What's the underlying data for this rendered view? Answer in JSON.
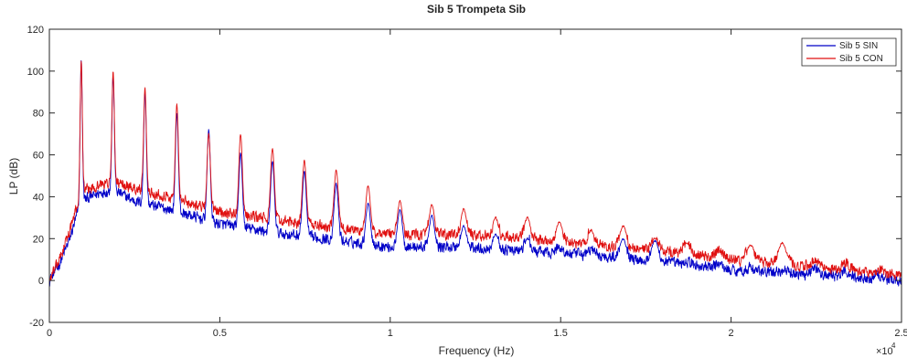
{
  "chart_data": {
    "type": "line",
    "title": "Sib 5 Trompeta Sib",
    "xlabel": "Frequency (Hz)",
    "ylabel": "LP (dB)",
    "x_multiplier_label": "×10",
    "x_multiplier_exponent": "4",
    "xlim": [
      0,
      25000
    ],
    "ylim": [
      -20,
      120
    ],
    "x_ticks": [
      {
        "value": 0,
        "label": "0"
      },
      {
        "value": 5000,
        "label": "0.5"
      },
      {
        "value": 10000,
        "label": "1"
      },
      {
        "value": 15000,
        "label": "1.5"
      },
      {
        "value": 20000,
        "label": "2"
      },
      {
        "value": 25000,
        "label": "2.5"
      }
    ],
    "y_ticks": [
      {
        "value": -20,
        "label": "-20"
      },
      {
        "value": 0,
        "label": "0"
      },
      {
        "value": 20,
        "label": "20"
      },
      {
        "value": 40,
        "label": "40"
      },
      {
        "value": 60,
        "label": "60"
      },
      {
        "value": 80,
        "label": "80"
      },
      {
        "value": 100,
        "label": "100"
      },
      {
        "value": 120,
        "label": "120"
      }
    ],
    "grid": false,
    "legend_position": "top-right",
    "fundamental_hz": 935,
    "series": [
      {
        "name": "Sib 5 SIN",
        "color": "#0000c8",
        "baseline": [
          [
            0,
            0
          ],
          [
            300,
            8
          ],
          [
            600,
            20
          ],
          [
            935,
            38
          ],
          [
            1500,
            42
          ],
          [
            1900,
            43
          ],
          [
            2500,
            38
          ],
          [
            3500,
            34
          ],
          [
            5000,
            27
          ],
          [
            7000,
            22
          ],
          [
            9000,
            18
          ],
          [
            10000,
            16
          ],
          [
            12000,
            16
          ],
          [
            14000,
            14
          ],
          [
            16000,
            12
          ],
          [
            18000,
            9
          ],
          [
            20000,
            5
          ],
          [
            22000,
            3
          ],
          [
            25000,
            0
          ]
        ],
        "peaks": [
          [
            935,
            105
          ],
          [
            1870,
            98
          ],
          [
            2805,
            90
          ],
          [
            3740,
            80
          ],
          [
            4675,
            72
          ],
          [
            5610,
            61
          ],
          [
            6545,
            57
          ],
          [
            7480,
            52
          ],
          [
            8415,
            46
          ],
          [
            9350,
            37
          ],
          [
            10285,
            34
          ],
          [
            11220,
            31
          ],
          [
            12155,
            26
          ],
          [
            13090,
            22
          ],
          [
            14025,
            20
          ],
          [
            14960,
            16
          ],
          [
            15895,
            15
          ],
          [
            16830,
            20
          ],
          [
            17765,
            19
          ],
          [
            18700,
            9
          ],
          [
            19635,
            8
          ],
          [
            20570,
            6
          ],
          [
            21505,
            5
          ],
          [
            22440,
            6
          ],
          [
            23375,
            4
          ],
          [
            24310,
            3
          ]
        ]
      },
      {
        "name": "Sib 5 CON",
        "color": "#e01010",
        "baseline": [
          [
            0,
            0
          ],
          [
            300,
            10
          ],
          [
            600,
            24
          ],
          [
            935,
            42
          ],
          [
            1500,
            46
          ],
          [
            1900,
            47
          ],
          [
            2500,
            44
          ],
          [
            3500,
            40
          ],
          [
            5000,
            33
          ],
          [
            7000,
            28
          ],
          [
            9000,
            24
          ],
          [
            10000,
            22
          ],
          [
            12000,
            22
          ],
          [
            14000,
            20
          ],
          [
            16000,
            17
          ],
          [
            18000,
            14
          ],
          [
            20000,
            10
          ],
          [
            22000,
            7
          ],
          [
            25000,
            2
          ]
        ],
        "peaks": [
          [
            935,
            105
          ],
          [
            1870,
            100
          ],
          [
            2805,
            92
          ],
          [
            3740,
            84
          ],
          [
            4675,
            70
          ],
          [
            5610,
            70
          ],
          [
            6545,
            63
          ],
          [
            7480,
            57
          ],
          [
            8415,
            53
          ],
          [
            9350,
            45
          ],
          [
            10285,
            38
          ],
          [
            11220,
            36
          ],
          [
            12155,
            34
          ],
          [
            13090,
            30
          ],
          [
            14025,
            30
          ],
          [
            14960,
            28
          ],
          [
            15895,
            24
          ],
          [
            16830,
            26
          ],
          [
            17765,
            20
          ],
          [
            18700,
            18
          ],
          [
            19635,
            14
          ],
          [
            20570,
            17
          ],
          [
            21505,
            18
          ],
          [
            22440,
            10
          ],
          [
            23375,
            8
          ],
          [
            24310,
            5
          ]
        ]
      }
    ]
  }
}
